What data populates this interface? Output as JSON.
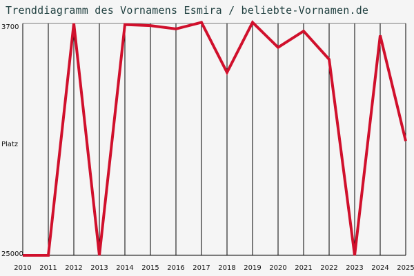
{
  "chart_data": {
    "type": "line",
    "title": "Trenddiagramm des Vornamens Esmira / beliebte-Vornamen.de",
    "ylabel": "Platz",
    "y_tick_labels": [
      "3700",
      "25000"
    ],
    "y_axis_inverted": true,
    "ylim": [
      3700,
      25000
    ],
    "grid": "vertical",
    "x": [
      "2010",
      "2011",
      "2012",
      "2013",
      "2014",
      "2015",
      "2016",
      "2017",
      "2018",
      "2019",
      "2020",
      "2021",
      "2022",
      "2023",
      "2024",
      "2025"
    ],
    "series": [
      {
        "color": "#d0102c",
        "values": [
          25000,
          25000,
          3700,
          25000,
          3800,
          3900,
          4200,
          3600,
          8200,
          3600,
          5900,
          4400,
          7000,
          25000,
          4800,
          14500
        ]
      }
    ]
  }
}
